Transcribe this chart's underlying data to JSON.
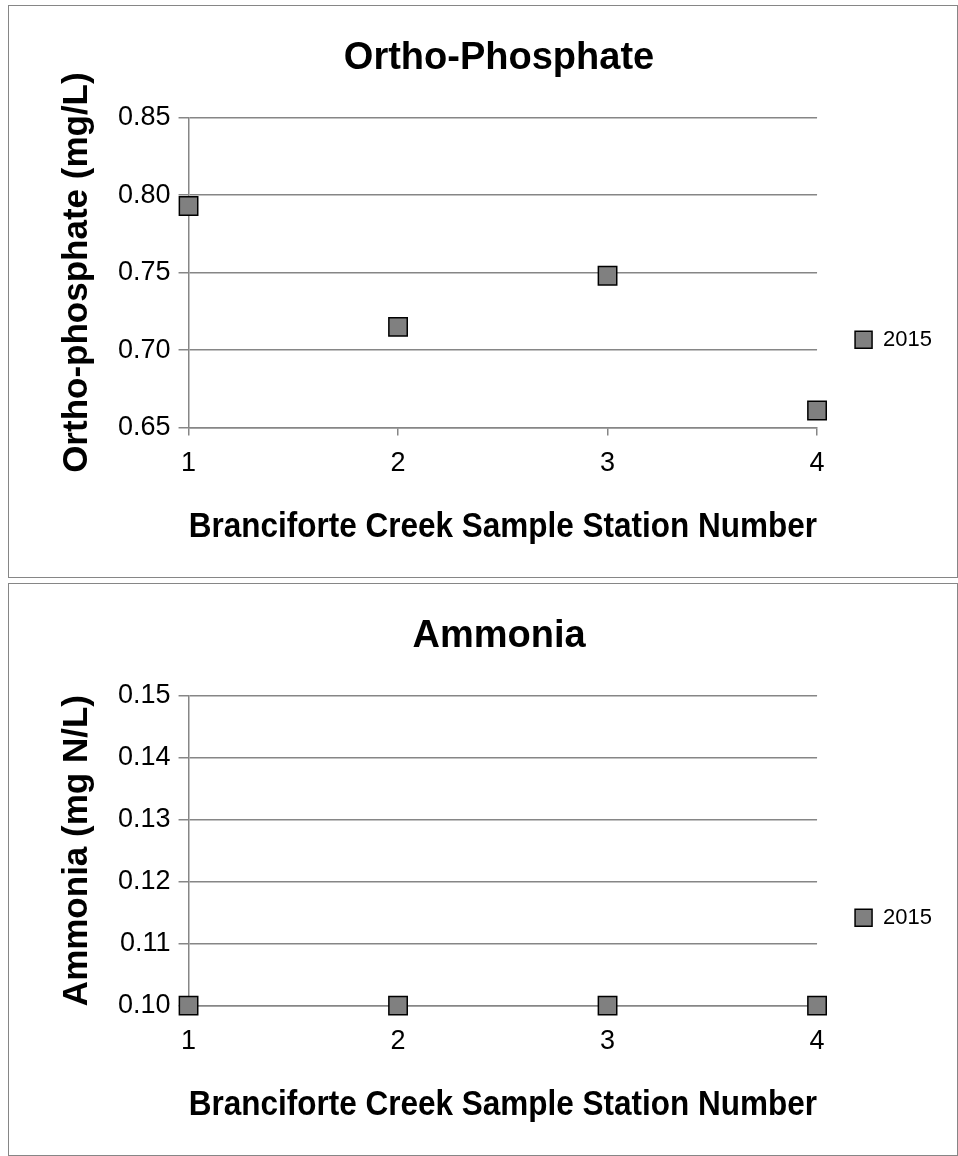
{
  "chart_data": [
    {
      "type": "scatter",
      "title": "Ortho-Phosphate",
      "xlabel": "Branciforte Creek Sample Station Number",
      "ylabel": "Ortho-phosphate (mg/L)",
      "x": [
        1,
        2,
        3,
        4
      ],
      "series": [
        {
          "name": "2015",
          "color": "#808080",
          "values": [
            0.793,
            0.715,
            0.748,
            0.661
          ]
        }
      ],
      "xlim": [
        1,
        4
      ],
      "xticks": [
        1,
        2,
        3,
        4
      ],
      "ylim": [
        0.65,
        0.85
      ],
      "yticks": [
        0.65,
        {
          "value": 0.7,
          "label": "0.70"
        },
        0.75,
        {
          "value": 0.8,
          "label": "0.80"
        },
        0.85
      ],
      "grid": "y",
      "legend": "right",
      "marker": "square"
    },
    {
      "type": "scatter",
      "title": "Ammonia",
      "xlabel": "Branciforte Creek Sample Station Number",
      "ylabel": "Ammonia (mg N/L)",
      "x": [
        1,
        2,
        3,
        4
      ],
      "series": [
        {
          "name": "2015",
          "color": "#808080",
          "values": [
            0.1,
            0.1,
            0.1,
            0.1
          ]
        }
      ],
      "xlim": [
        1,
        4
      ],
      "xticks": [
        1,
        2,
        3,
        4
      ],
      "ylim": [
        0.1,
        0.15
      ],
      "yticks": [
        {
          "value": 0.1,
          "label": "0.10"
        },
        0.11,
        0.12,
        0.13,
        0.14,
        0.15
      ],
      "grid": "y",
      "legend": "right",
      "marker": "square"
    }
  ]
}
